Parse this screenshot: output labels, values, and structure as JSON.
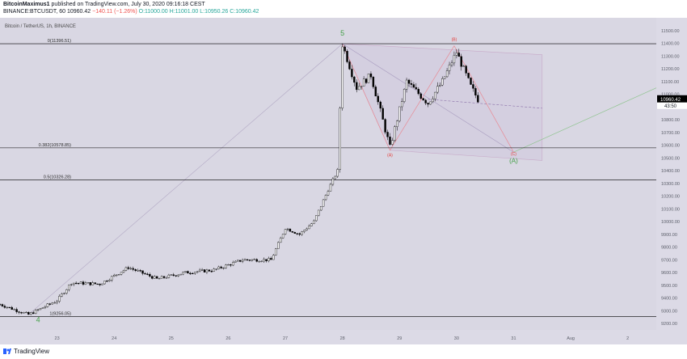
{
  "header": {
    "line1_user": "BitcoinMaximus1",
    "line1_rest": "published on TradingView.com, July 30, 2020 09:16:18 CEST",
    "symbol": "BINANCE:BTCUSDT, 60",
    "last": "10960.42",
    "change": "−140.11 (−1.26%)",
    "ohlc": "O:11000.00 H:11001.00 L:10950.26 C:10960.42"
  },
  "footer": {
    "brand": "TradingView"
  },
  "colors": {
    "background": "#d9d7e3",
    "up": "#ffffff",
    "down": "#000000",
    "fib": "#000000",
    "wave_green": "#43a047",
    "wave_red": "#e53935",
    "pitchfork": "#c8bfd6"
  },
  "chart_data": {
    "type": "candlestick",
    "legend": "Bitcoin / TetherUS, 1h, BINANCE",
    "x_ticks": [
      "23",
      "24",
      "25",
      "26",
      "27",
      "28",
      "29",
      "30",
      "31",
      "Aug",
      "2"
    ],
    "y_ticks": [
      "11500.00",
      "11400.00",
      "11300.00",
      "11200.00",
      "11100.00",
      "11000.00",
      "10900.00",
      "10800.00",
      "10700.00",
      "10600.00",
      "10500.00",
      "10400.00",
      "10300.00",
      "10200.00",
      "10100.00",
      "10000.00",
      "9900.00",
      "9800.00",
      "9700.00",
      "9600.00",
      "9500.00",
      "9400.00",
      "9300.00",
      "9200.00"
    ],
    "ylim": [
      9150,
      11600
    ],
    "xlim_days": [
      "2020-07-22",
      "2020-08-02 12:00"
    ],
    "last_price_label": "10960.42",
    "countdown_label": "43:50",
    "fib_levels": [
      {
        "label": "0(11396.51)",
        "value": 11396.51
      },
      {
        "label": "0.382(10578.85)",
        "value": 10578.85
      },
      {
        "label": "0.5(10326.28)",
        "value": 10326.28
      },
      {
        "label": "1(9256.05)",
        "value": 9256.05
      }
    ],
    "wave_labels": [
      {
        "text": "4",
        "date": "2020-07-22 16:00",
        "price": 9210,
        "color": "green"
      },
      {
        "text": "5",
        "date": "2020-07-28 00:00",
        "price": 11460,
        "color": "green"
      },
      {
        "text": "(A)",
        "date": "2020-07-28 20:00",
        "price": 10510,
        "color": "red"
      },
      {
        "text": "(B)",
        "date": "2020-07-29 23:00",
        "price": 11420,
        "color": "red"
      },
      {
        "text": "(C)",
        "date": "2020-07-31 00:00",
        "price": 10520,
        "color": "red"
      },
      {
        "text": "(A)",
        "date": "2020-07-31 00:00",
        "price": 10460,
        "color": "green"
      }
    ],
    "waypoints": [
      [
        "2020-07-22 00:00",
        9350
      ],
      [
        "2020-07-22 12:00",
        9270
      ],
      [
        "2020-07-23 00:00",
        9380
      ],
      [
        "2020-07-23 06:00",
        9520
      ],
      [
        "2020-07-23 18:00",
        9510
      ],
      [
        "2020-07-24 06:00",
        9640
      ],
      [
        "2020-07-24 18:00",
        9550
      ],
      [
        "2020-07-25 06:00",
        9600
      ],
      [
        "2020-07-25 18:00",
        9620
      ],
      [
        "2020-07-26 06:00",
        9700
      ],
      [
        "2020-07-26 18:00",
        9700
      ],
      [
        "2020-07-27 00:00",
        9950
      ],
      [
        "2020-07-27 06:00",
        9900
      ],
      [
        "2020-07-27 12:00",
        10000
      ],
      [
        "2020-07-27 18:00",
        10250
      ],
      [
        "2020-07-27 22:00",
        10400
      ],
      [
        "2020-07-28 00:00",
        11390
      ],
      [
        "2020-07-28 06:00",
        11050
      ],
      [
        "2020-07-28 12:00",
        11150
      ],
      [
        "2020-07-28 20:00",
        10580
      ],
      [
        "2020-07-29 03:00",
        11100
      ],
      [
        "2020-07-29 12:00",
        10930
      ],
      [
        "2020-07-29 18:00",
        11100
      ],
      [
        "2020-07-30 00:00",
        11330
      ],
      [
        "2020-07-30 06:00",
        11060
      ],
      [
        "2020-07-30 09:00",
        10960
      ]
    ]
  }
}
